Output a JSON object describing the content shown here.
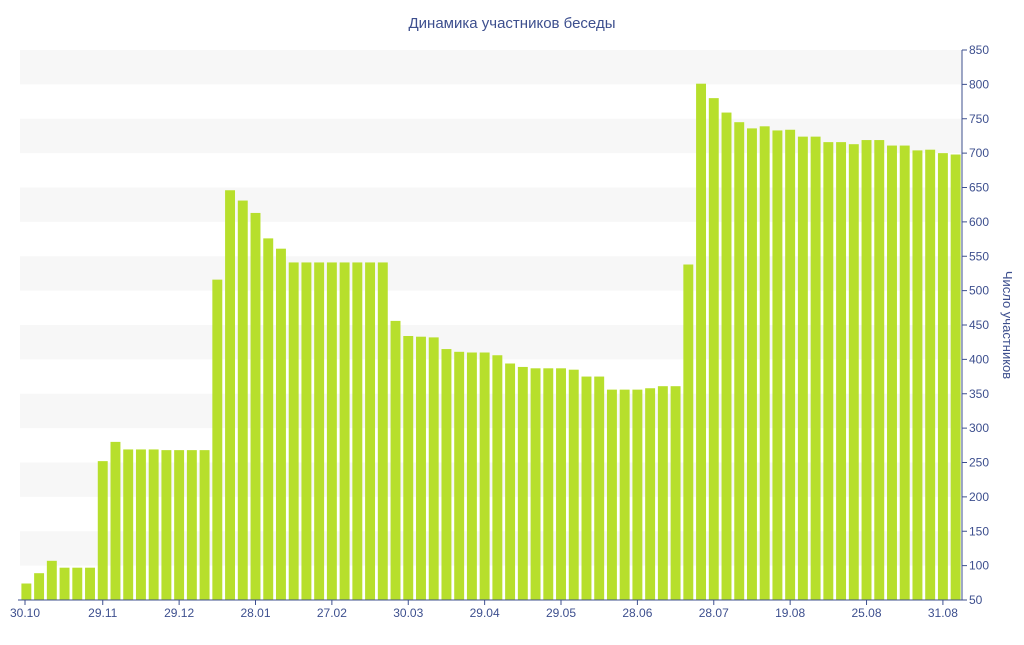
{
  "chart_data": {
    "type": "bar",
    "title": "Динамика участников беседы",
    "ylabel": "Число участников",
    "xlabel": "",
    "ylim": [
      50,
      850
    ],
    "yticks": [
      50,
      100,
      150,
      200,
      250,
      300,
      350,
      400,
      450,
      500,
      550,
      600,
      650,
      700,
      750,
      800,
      850
    ],
    "x_ticks": [
      {
        "label": "30.10",
        "index": 0
      },
      {
        "label": "29.11",
        "index": 6
      },
      {
        "label": "29.12",
        "index": 12
      },
      {
        "label": "28.01",
        "index": 18
      },
      {
        "label": "27.02",
        "index": 24
      },
      {
        "label": "30.03",
        "index": 30
      },
      {
        "label": "29.04",
        "index": 36
      },
      {
        "label": "29.05",
        "index": 42
      },
      {
        "label": "28.06",
        "index": 48
      },
      {
        "label": "28.07",
        "index": 54
      },
      {
        "label": "19.08",
        "index": 60
      },
      {
        "label": "25.08",
        "index": 66
      },
      {
        "label": "31.08",
        "index": 72
      }
    ],
    "values": [
      74,
      89,
      107,
      97,
      97,
      97,
      252,
      280,
      269,
      269,
      269,
      268,
      268,
      268,
      268,
      516,
      646,
      631,
      613,
      576,
      561,
      541,
      541,
      541,
      541,
      541,
      541,
      541,
      541,
      456,
      434,
      433,
      432,
      415,
      411,
      410,
      410,
      406,
      394,
      389,
      387,
      387,
      387,
      385,
      375,
      375,
      356,
      356,
      356,
      358,
      361,
      361,
      538,
      801,
      780,
      759,
      745,
      736,
      739,
      733,
      734,
      724,
      724,
      716,
      716,
      713,
      719,
      719,
      711,
      711,
      704,
      705,
      700,
      698
    ],
    "grid": true,
    "legend": "none",
    "bar_color": "#b7df2c",
    "band_color": "#f7f7f7",
    "text_color": "#3d4f8e",
    "axis_color": "#3d4f8e"
  }
}
